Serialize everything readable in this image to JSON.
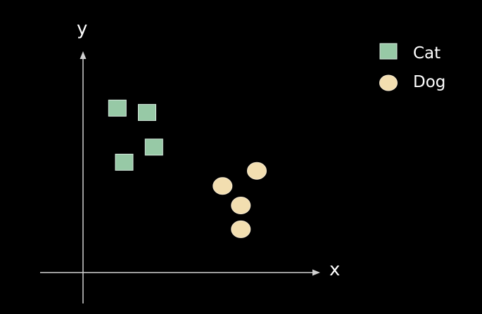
{
  "chart_data": {
    "type": "scatter",
    "title": "",
    "xlabel": "x",
    "ylabel": "y",
    "xlim": [
      0,
      10
    ],
    "ylim": [
      0,
      10
    ],
    "grid": false,
    "legend_position": "top-right",
    "series": [
      {
        "name": "Cat",
        "marker": "square",
        "color": "#97c9a6",
        "points": [
          {
            "x": 1.5,
            "y": 7.6
          },
          {
            "x": 2.8,
            "y": 7.4
          },
          {
            "x": 3.1,
            "y": 5.8
          },
          {
            "x": 1.8,
            "y": 5.1
          }
        ]
      },
      {
        "name": "Dog",
        "marker": "circle",
        "color": "#f2deb0",
        "points": [
          {
            "x": 7.6,
            "y": 4.7
          },
          {
            "x": 6.1,
            "y": 4.0
          },
          {
            "x": 6.9,
            "y": 3.1
          },
          {
            "x": 6.9,
            "y": 2.0
          }
        ]
      }
    ]
  }
}
